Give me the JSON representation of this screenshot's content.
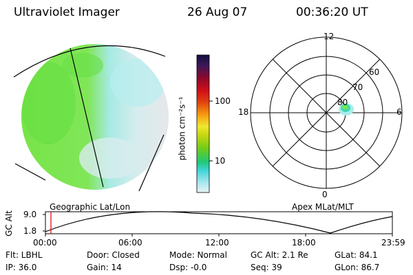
{
  "header": {
    "title": "Ultraviolet Imager",
    "date": "26 Aug 07",
    "time": "00:36:20 UT"
  },
  "colorbar": {
    "unit_label": "photon cm⁻²s⁻¹",
    "tick_100": "100",
    "tick_10": "10",
    "colors": [
      "#e8f4f6",
      "#c8ecf0",
      "#a0e4ec",
      "#70dce6",
      "#40d4d8",
      "#20ccb0",
      "#20c878",
      "#40c838",
      "#70cc18",
      "#a8d010",
      "#d8dc10",
      "#f0e830",
      "#f8d018",
      "#f8a010",
      "#f07010",
      "#e04010",
      "#d01018",
      "#b00820",
      "#880830",
      "#601040",
      "#401858",
      "#201868",
      "#101040"
    ]
  },
  "geo_panel": {
    "label": "Geographic Lat/Lon",
    "colors": {
      "green": "#7ae848",
      "cyan": "#a8ecec",
      "grey": "#e2e6e8"
    }
  },
  "polar_panel": {
    "label": "Apex MLat/MLT",
    "mlt_12": "12",
    "mlt_18": "18",
    "mlt_6": "6",
    "mlt_0": "0",
    "lat_60": "60",
    "lat_70": "70",
    "lat_80": "80"
  },
  "timeline": {
    "axis_label": "GC Alt",
    "y_top": "9.0",
    "y_bottom": "1.8",
    "ticks": [
      "00:00",
      "06:00",
      "12:00",
      "18:00",
      "23:59"
    ],
    "marker_color": "#e02020"
  },
  "footer": {
    "flt": "Flt: LBHL",
    "ip": "IP: 36.0",
    "door": "Door: Closed",
    "gain": "Gain: 14",
    "mode": "Mode: Normal",
    "dsp": "Dsp:    -0.0",
    "gcalt": "GC Alt: 2.1 Re",
    "seq": "Seq: 39",
    "glat": "GLat:   84.1",
    "glon": "GLon:   86.7"
  }
}
